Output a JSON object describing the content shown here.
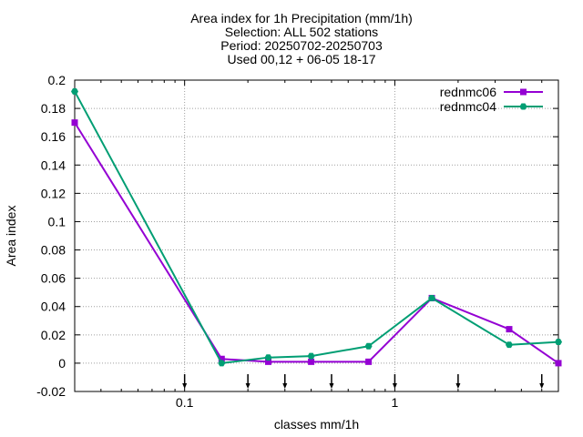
{
  "chart_data": {
    "type": "line",
    "title_lines": [
      "Area index  for 1h Precipitation (mm/1h)",
      "Selection: ALL    502 stations",
      "Period: 20250702-20250703",
      "Used 00,12 + 06-05 18-17"
    ],
    "xlabel": "classes mm/1h",
    "ylabel": "Area index",
    "x_scale": "log",
    "xlim": [
      0.03,
      6
    ],
    "ylim": [
      -0.02,
      0.2
    ],
    "x_ticks": [
      {
        "value": 0.1,
        "label": "0.1"
      },
      {
        "value": 1,
        "label": "1"
      }
    ],
    "y_ticks": [
      {
        "value": -0.02,
        "label": "-0.02"
      },
      {
        "value": 0,
        "label": "0"
      },
      {
        "value": 0.02,
        "label": "0.02"
      },
      {
        "value": 0.04,
        "label": "0.04"
      },
      {
        "value": 0.06,
        "label": "0.06"
      },
      {
        "value": 0.08,
        "label": "0.08"
      },
      {
        "value": 0.1,
        "label": "0.1"
      },
      {
        "value": 0.12,
        "label": "0.12"
      },
      {
        "value": 0.14,
        "label": "0.14"
      },
      {
        "value": 0.16,
        "label": "0.16"
      },
      {
        "value": 0.18,
        "label": "0.18"
      },
      {
        "value": 0.2,
        "label": "0.2"
      }
    ],
    "class_thresholds": [
      0.1,
      0.2,
      0.3,
      0.5,
      1,
      2,
      5
    ],
    "grid": true,
    "legend_position": "top-right",
    "x": [
      0.03,
      0.15,
      0.25,
      0.4,
      0.75,
      1.5,
      3.5,
      6
    ],
    "series": [
      {
        "name": "rednmc06",
        "color": "#9400d3",
        "values": [
          0.17,
          0.003,
          0.001,
          0.001,
          0.001,
          0.046,
          0.024,
          0.0
        ]
      },
      {
        "name": "rednmc04",
        "color": "#009e73",
        "values": [
          0.192,
          0.0,
          0.004,
          0.005,
          0.012,
          0.046,
          0.013,
          0.015
        ]
      }
    ]
  }
}
